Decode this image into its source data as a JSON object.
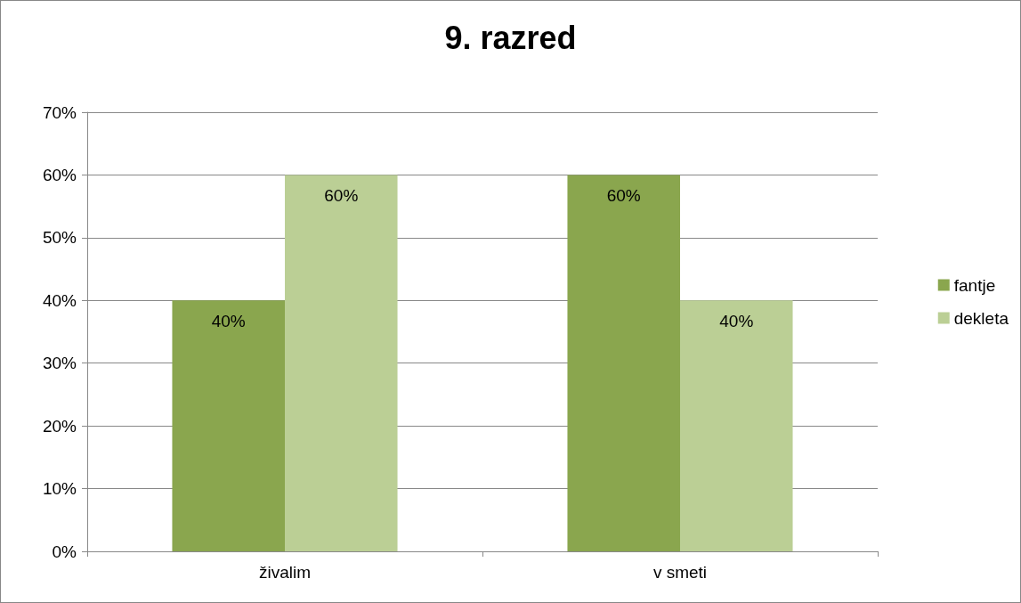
{
  "chart_data": {
    "type": "bar",
    "title": "9. razred",
    "categories": [
      "živalim",
      "v smeti"
    ],
    "series": [
      {
        "name": "fantje",
        "color": "#8aa64e",
        "values": [
          40,
          60
        ],
        "value_labels": [
          "40%",
          "60%"
        ]
      },
      {
        "name": "dekleta",
        "color": "#bbcf95",
        "values": [
          60,
          40
        ],
        "value_labels": [
          "60%",
          "40%"
        ]
      }
    ],
    "ylim": [
      0,
      70
    ],
    "yticks": [
      {
        "value": 0,
        "label": "0%"
      },
      {
        "value": 10,
        "label": "10%"
      },
      {
        "value": 20,
        "label": "20%"
      },
      {
        "value": 30,
        "label": "30%"
      },
      {
        "value": 40,
        "label": "40%"
      },
      {
        "value": 50,
        "label": "50%"
      },
      {
        "value": 60,
        "label": "60%"
      },
      {
        "value": 70,
        "label": "70%"
      }
    ],
    "grid": "y",
    "legend": "right"
  }
}
